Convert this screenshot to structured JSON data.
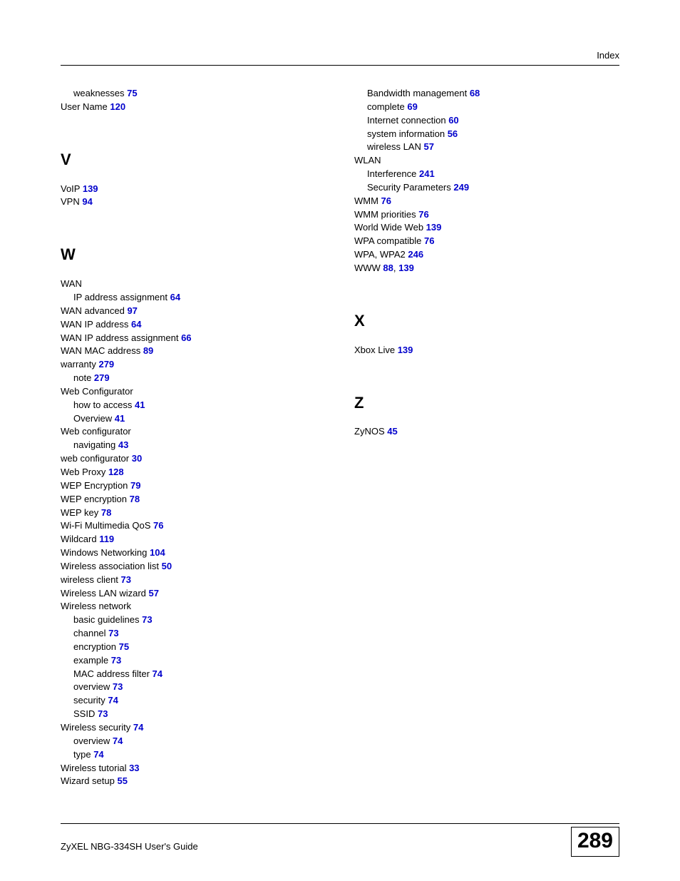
{
  "header": {
    "label": "Index"
  },
  "footer": {
    "guide": "ZyXEL NBG-334SH User's Guide",
    "pagenum": "289"
  },
  "link_color": "#0000cc",
  "left": [
    {
      "t": "sub",
      "text": "weaknesses",
      "pages": [
        "75"
      ]
    },
    {
      "t": "main",
      "text": "User Name",
      "pages": [
        "120"
      ]
    },
    {
      "t": "letter",
      "text": "V"
    },
    {
      "t": "main",
      "text": "VoIP",
      "pages": [
        "139"
      ]
    },
    {
      "t": "main",
      "text": "VPN",
      "pages": [
        "94"
      ]
    },
    {
      "t": "letter",
      "text": "W"
    },
    {
      "t": "main",
      "text": "WAN",
      "pages": []
    },
    {
      "t": "sub",
      "text": "IP address assignment",
      "pages": [
        "64"
      ]
    },
    {
      "t": "main",
      "text": "WAN advanced",
      "pages": [
        "97"
      ]
    },
    {
      "t": "main",
      "text": "WAN IP address",
      "pages": [
        "64"
      ]
    },
    {
      "t": "main",
      "text": "WAN IP address assignment",
      "pages": [
        "66"
      ]
    },
    {
      "t": "main",
      "text": "WAN MAC address",
      "pages": [
        "89"
      ]
    },
    {
      "t": "main",
      "text": "warranty",
      "pages": [
        "279"
      ]
    },
    {
      "t": "sub",
      "text": "note",
      "pages": [
        "279"
      ]
    },
    {
      "t": "main",
      "text": "Web Configurator",
      "pages": []
    },
    {
      "t": "sub",
      "text": "how to access",
      "pages": [
        "41"
      ]
    },
    {
      "t": "sub",
      "text": "Overview",
      "pages": [
        "41"
      ]
    },
    {
      "t": "main",
      "text": "Web configurator",
      "pages": []
    },
    {
      "t": "sub",
      "text": "navigating",
      "pages": [
        "43"
      ]
    },
    {
      "t": "main",
      "text": "web configurator",
      "pages": [
        "30"
      ]
    },
    {
      "t": "main",
      "text": "Web Proxy",
      "pages": [
        "128"
      ]
    },
    {
      "t": "main",
      "text": "WEP Encryption",
      "pages": [
        "79"
      ]
    },
    {
      "t": "main",
      "text": "WEP encryption",
      "pages": [
        "78"
      ]
    },
    {
      "t": "main",
      "text": "WEP key",
      "pages": [
        "78"
      ]
    },
    {
      "t": "main",
      "text": "Wi-Fi Multimedia QoS",
      "pages": [
        "76"
      ]
    },
    {
      "t": "main",
      "text": "Wildcard",
      "pages": [
        "119"
      ]
    },
    {
      "t": "main",
      "text": "Windows Networking",
      "pages": [
        "104"
      ]
    },
    {
      "t": "main",
      "text": "Wireless association list",
      "pages": [
        "50"
      ]
    },
    {
      "t": "main",
      "text": "wireless client",
      "pages": [
        "73"
      ]
    },
    {
      "t": "main",
      "text": "Wireless LAN wizard",
      "pages": [
        "57"
      ]
    },
    {
      "t": "main",
      "text": "Wireless network",
      "pages": []
    },
    {
      "t": "sub",
      "text": "basic guidelines",
      "pages": [
        "73"
      ]
    },
    {
      "t": "sub",
      "text": "channel",
      "pages": [
        "73"
      ]
    },
    {
      "t": "sub",
      "text": "encryption",
      "pages": [
        "75"
      ]
    },
    {
      "t": "sub",
      "text": "example",
      "pages": [
        "73"
      ]
    },
    {
      "t": "sub",
      "text": "MAC address filter",
      "pages": [
        "74"
      ]
    },
    {
      "t": "sub",
      "text": "overview",
      "pages": [
        "73"
      ]
    },
    {
      "t": "sub",
      "text": "security",
      "pages": [
        "74"
      ]
    },
    {
      "t": "sub",
      "text": "SSID",
      "pages": [
        "73"
      ]
    },
    {
      "t": "main",
      "text": "Wireless security",
      "pages": [
        "74"
      ]
    },
    {
      "t": "sub",
      "text": "overview",
      "pages": [
        "74"
      ]
    },
    {
      "t": "sub",
      "text": "type",
      "pages": [
        "74"
      ]
    },
    {
      "t": "main",
      "text": "Wireless tutorial",
      "pages": [
        "33"
      ]
    },
    {
      "t": "main",
      "text": "Wizard setup",
      "pages": [
        "55"
      ]
    }
  ],
  "right": [
    {
      "t": "sub",
      "text": "Bandwidth management",
      "pages": [
        "68"
      ]
    },
    {
      "t": "sub",
      "text": "complete",
      "pages": [
        "69"
      ]
    },
    {
      "t": "sub",
      "text": "Internet connection",
      "pages": [
        "60"
      ]
    },
    {
      "t": "sub",
      "text": "system information",
      "pages": [
        "56"
      ]
    },
    {
      "t": "sub",
      "text": "wireless LAN",
      "pages": [
        "57"
      ]
    },
    {
      "t": "main",
      "text": "WLAN",
      "pages": []
    },
    {
      "t": "sub",
      "text": "Interference",
      "pages": [
        "241"
      ]
    },
    {
      "t": "sub",
      "text": "Security Parameters",
      "pages": [
        "249"
      ]
    },
    {
      "t": "main",
      "text": "WMM",
      "pages": [
        "76"
      ]
    },
    {
      "t": "main",
      "text": "WMM priorities",
      "pages": [
        "76"
      ]
    },
    {
      "t": "main",
      "text": "World Wide Web",
      "pages": [
        "139"
      ]
    },
    {
      "t": "main",
      "text": "WPA compatible",
      "pages": [
        "76"
      ]
    },
    {
      "t": "main",
      "text": "WPA, WPA2",
      "pages": [
        "246"
      ]
    },
    {
      "t": "main",
      "text": "WWW",
      "pages": [
        "88",
        "139"
      ]
    },
    {
      "t": "letter",
      "text": "X"
    },
    {
      "t": "main",
      "text": "Xbox Live",
      "pages": [
        "139"
      ]
    },
    {
      "t": "letter",
      "text": "Z"
    },
    {
      "t": "main",
      "text": "ZyNOS",
      "pages": [
        "45"
      ]
    }
  ]
}
